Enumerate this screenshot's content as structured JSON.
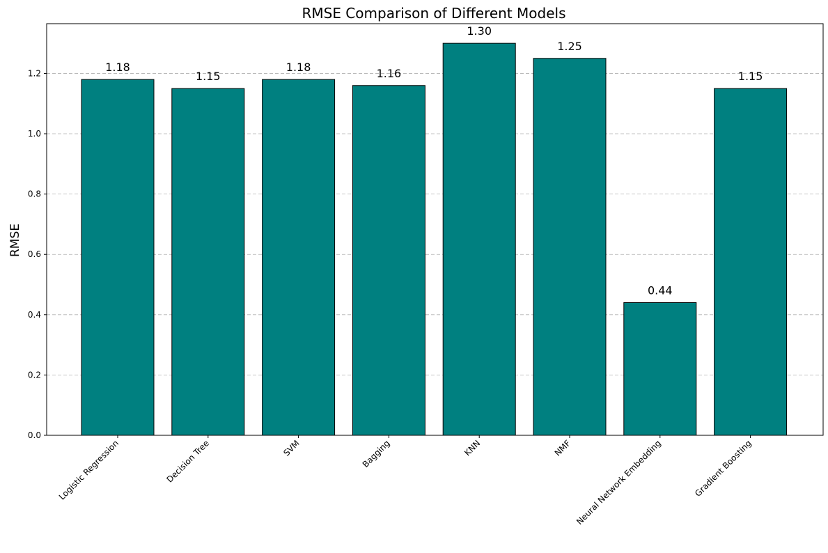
{
  "chart_data": {
    "type": "bar",
    "title": "RMSE Comparison of Different Models",
    "xlabel": "",
    "ylabel": "RMSE",
    "categories": [
      "Logistic Regression",
      "Decision Tree",
      "SVM",
      "Bagging",
      "KNN",
      "NMF",
      "Neural Network Embedding",
      "Gradient Boosting"
    ],
    "values": [
      1.18,
      1.15,
      1.18,
      1.16,
      1.3,
      1.25,
      0.44,
      1.15
    ],
    "value_labels": [
      "1.18",
      "1.15",
      "1.18",
      "1.16",
      "1.30",
      "1.25",
      "0.44",
      "1.15"
    ],
    "ylim": [
      0,
      1.365
    ],
    "yticks": [
      0.0,
      0.2,
      0.4,
      0.6,
      0.8,
      1.0,
      1.2
    ],
    "ytick_labels": [
      "0.0",
      "0.2",
      "0.4",
      "0.6",
      "0.8",
      "1.0",
      "1.2"
    ],
    "grid": "y-dashed",
    "legend": "none",
    "colors": {
      "bar_fill": "#008080",
      "bar_edge": "#000000",
      "grid": "#b0b0b0",
      "axis": "#000000",
      "text": "#000000"
    }
  }
}
